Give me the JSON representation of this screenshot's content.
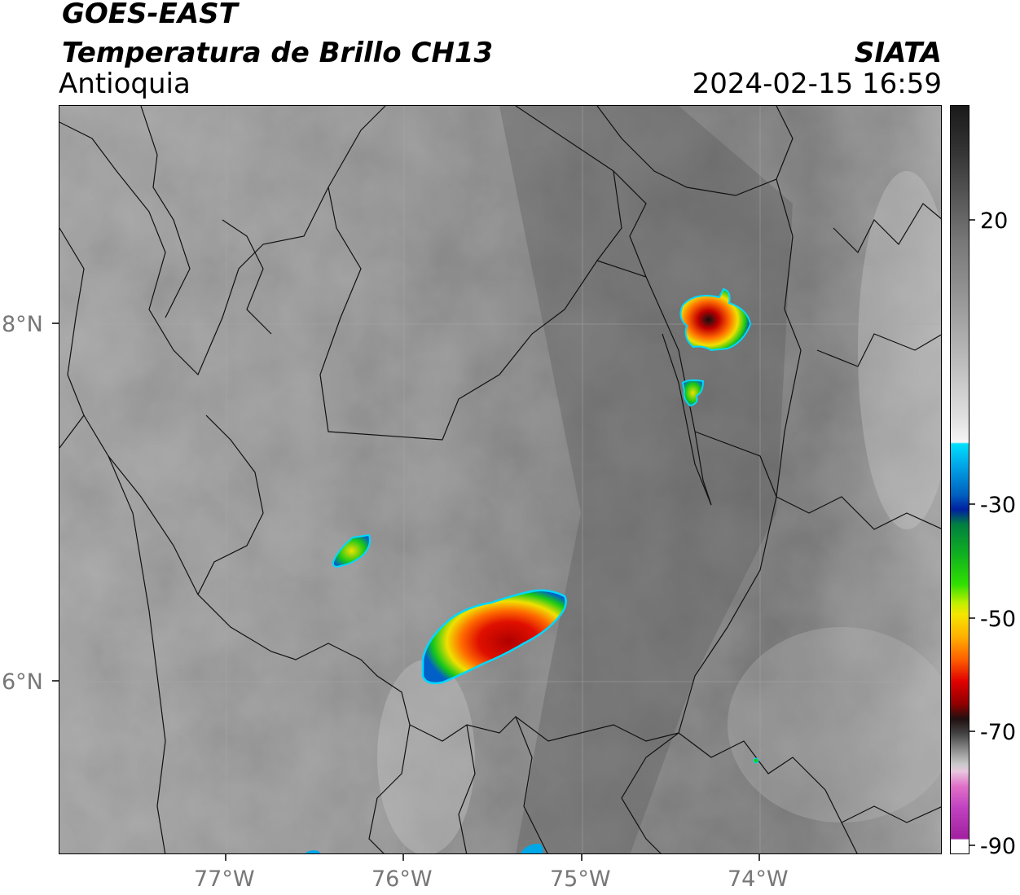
{
  "header": {
    "satellite": "GOES-EAST",
    "product": "Temperatura de Brillo CH13",
    "region": "Antioquia",
    "agency": "SIATA",
    "datetime": "2024-02-15 16:59"
  },
  "axes": {
    "lon_labels": [
      "77°W",
      "76°W",
      "75°W",
      "74°W"
    ],
    "lat_labels": [
      "8°N",
      "6°N"
    ]
  },
  "colorbar": {
    "tick_labels": [
      "20",
      "-30",
      "-50",
      "-70",
      "-90"
    ]
  },
  "colors": {
    "background_gray": "#8a8a8a",
    "cold_black": "#1a1a1a",
    "red": "#e00000",
    "orange": "#ff8c00",
    "yellow": "#f5e600",
    "green": "#18c818",
    "blue": "#0050c0",
    "cyan": "#00e0ff",
    "magenta": "#c040c0"
  }
}
